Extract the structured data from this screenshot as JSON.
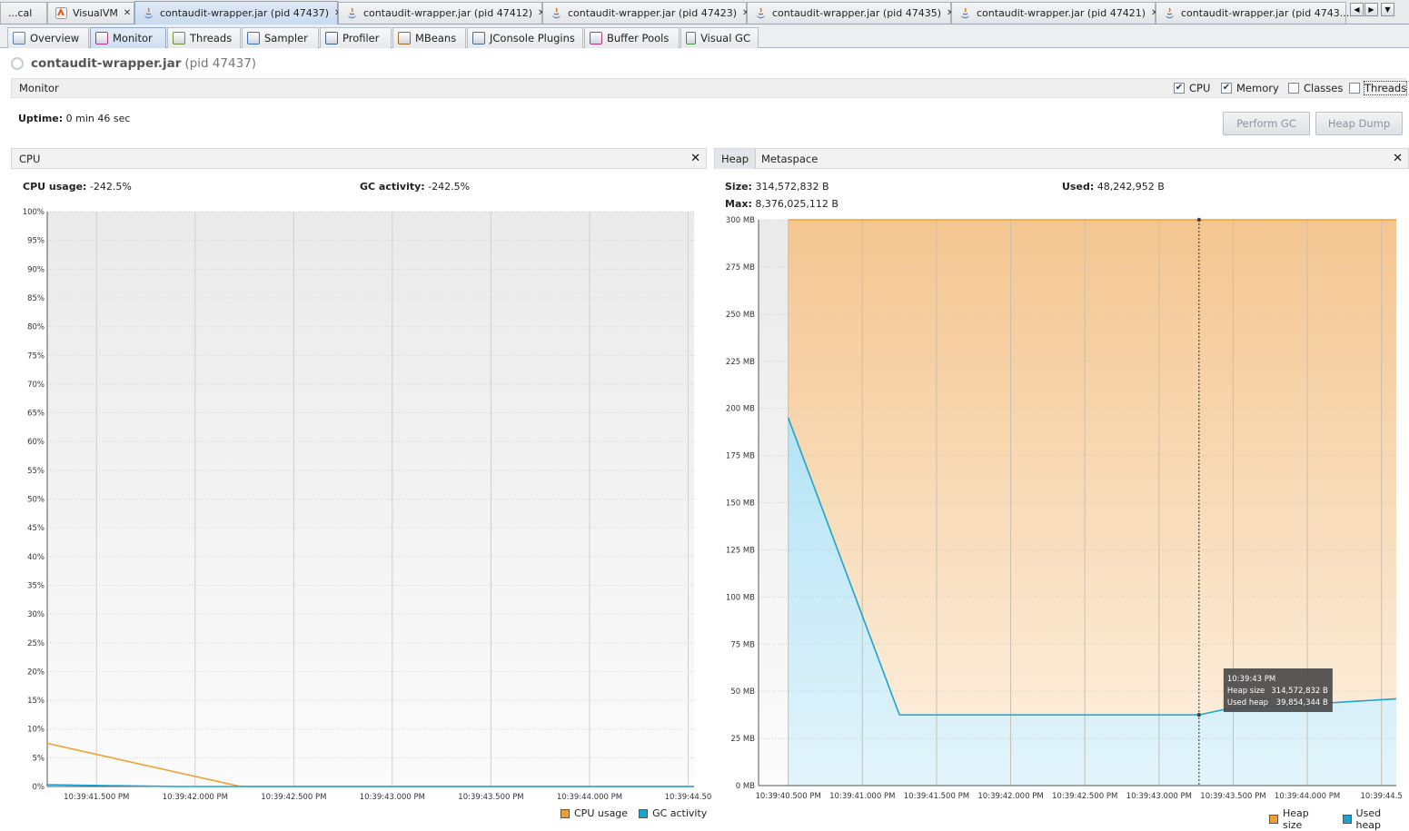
{
  "doc_tabs": [
    {
      "label": "...cal",
      "active": false,
      "closable": false
    },
    {
      "label": "VisualVM",
      "active": false,
      "closable": true
    },
    {
      "label": "contaudit-wrapper.jar (pid 47437)",
      "active": true,
      "closable": true
    },
    {
      "label": "contaudit-wrapper.jar (pid 47412)",
      "active": false,
      "closable": true
    },
    {
      "label": "contaudit-wrapper.jar (pid 47423)",
      "active": false,
      "closable": true
    },
    {
      "label": "contaudit-wrapper.jar (pid 47435)",
      "active": false,
      "closable": true
    },
    {
      "label": "contaudit-wrapper.jar (pid 47421)",
      "active": false,
      "closable": true
    },
    {
      "label": "contaudit-wrapper.jar (pid 4743...",
      "active": false,
      "closable": false
    }
  ],
  "subtabs": [
    {
      "label": "Overview",
      "icon": "overview-icon"
    },
    {
      "label": "Monitor",
      "icon": "monitor-icon",
      "active": true
    },
    {
      "label": "Threads",
      "icon": "threads-icon"
    },
    {
      "label": "Sampler",
      "icon": "sampler-icon"
    },
    {
      "label": "Profiler",
      "icon": "profiler-icon"
    },
    {
      "label": "MBeans",
      "icon": "mbeans-icon"
    },
    {
      "label": "JConsole Plugins",
      "icon": "jconsole-plugins-icon"
    },
    {
      "label": "Buffer Pools",
      "icon": "buffer-pools-icon"
    },
    {
      "label": "Visual GC",
      "icon": "visual-gc-icon"
    }
  ],
  "header": {
    "app_name": "contaudit-wrapper.jar",
    "pid": "(pid 47437)"
  },
  "monitor": {
    "title": "Monitor",
    "checkboxes": [
      {
        "label": "CPU",
        "checked": true
      },
      {
        "label": "Memory",
        "checked": true
      },
      {
        "label": "Classes",
        "checked": false
      },
      {
        "label": "Threads",
        "checked": false
      }
    ],
    "uptime_label": "Uptime:",
    "uptime_value": "0 min 46 sec",
    "perform_gc": "Perform GC",
    "heap_dump": "Heap Dump"
  },
  "cpu_panel": {
    "title": "CPU",
    "close": "✕",
    "cpu_usage_label": "CPU usage:",
    "cpu_usage_value": "-242.5%",
    "gc_activity_label": "GC activity:",
    "gc_activity_value": "-242.5%",
    "legend": [
      "CPU usage",
      "GC activity"
    ]
  },
  "heap_panel": {
    "tabs": [
      "Heap",
      "Metaspace"
    ],
    "close": "✕",
    "size_label": "Size:",
    "size_value": "314,572,832 B",
    "used_label": "Used:",
    "used_value": "48,242,952 B",
    "max_label": "Max:",
    "max_value": "8,376,025,112 B",
    "legend": [
      "Heap size",
      "Used heap"
    ],
    "tooltip": {
      "time": "10:39:43 PM",
      "rows": [
        {
          "label": "Heap size",
          "value": "314,572,832 B"
        },
        {
          "label": "Used heap",
          "value": "39,854,344 B"
        }
      ]
    }
  },
  "colors": {
    "cpu_usage": "#f0a030",
    "gc_activity": "#1aa5d0",
    "heap_size": "#f0a030",
    "used_heap": "#1aa5d0"
  },
  "chart_data": [
    {
      "type": "line",
      "name": "CPU",
      "x": [
        0.0,
        0.8,
        2.0,
        3.3
      ],
      "x_tick_labels": [
        "10:39:41.500 PM",
        "10:39:42.000 PM",
        "10:39:42.500 PM",
        "10:39:43.000 PM",
        "10:39:43.500 PM",
        "10:39:44.000 PM",
        "10:39:44.50"
      ],
      "y_tick_labels": [
        "0%",
        "5%",
        "10%",
        "15%",
        "20%",
        "25%",
        "30%",
        "35%",
        "40%",
        "45%",
        "50%",
        "55%",
        "60%",
        "65%",
        "70%",
        "75%",
        "80%",
        "85%",
        "90%",
        "95%",
        "100%"
      ],
      "ylim": [
        0,
        100
      ],
      "series": [
        {
          "name": "CPU usage",
          "points": [
            [
              41.25,
              7.5
            ],
            [
              42.23,
              0.0
            ],
            [
              44.53,
              0.0
            ]
          ]
        },
        {
          "name": "GC activity",
          "points": [
            [
              41.25,
              0.3
            ],
            [
              41.9,
              0.0
            ],
            [
              44.53,
              0.0
            ]
          ]
        }
      ]
    },
    {
      "type": "area",
      "name": "Heap",
      "x_tick_labels": [
        "10:39:40.500 PM",
        "10:39:41.000 PM",
        "10:39:41.500 PM",
        "10:39:42.000 PM",
        "10:39:42.500 PM",
        "10:39:43.000 PM",
        "10:39:43.500 PM",
        "10:39:44.000 PM",
        "10:39:44.5"
      ],
      "y_tick_labels": [
        "0 MB",
        "25 MB",
        "50 MB",
        "75 MB",
        "100 MB",
        "125 MB",
        "150 MB",
        "175 MB",
        "200 MB",
        "225 MB",
        "250 MB",
        "275 MB",
        "300 MB"
      ],
      "ylim": [
        0,
        300
      ],
      "series": [
        {
          "name": "Heap size",
          "points": [
            [
              40.5,
              300
            ],
            [
              44.6,
              300
            ]
          ]
        },
        {
          "name": "Used heap",
          "points": [
            [
              40.5,
              195
            ],
            [
              41.25,
              37.5
            ],
            [
              43.27,
              37.5
            ],
            [
              43.45,
              40.5
            ],
            [
              44.6,
              46
            ]
          ]
        }
      ]
    }
  ]
}
